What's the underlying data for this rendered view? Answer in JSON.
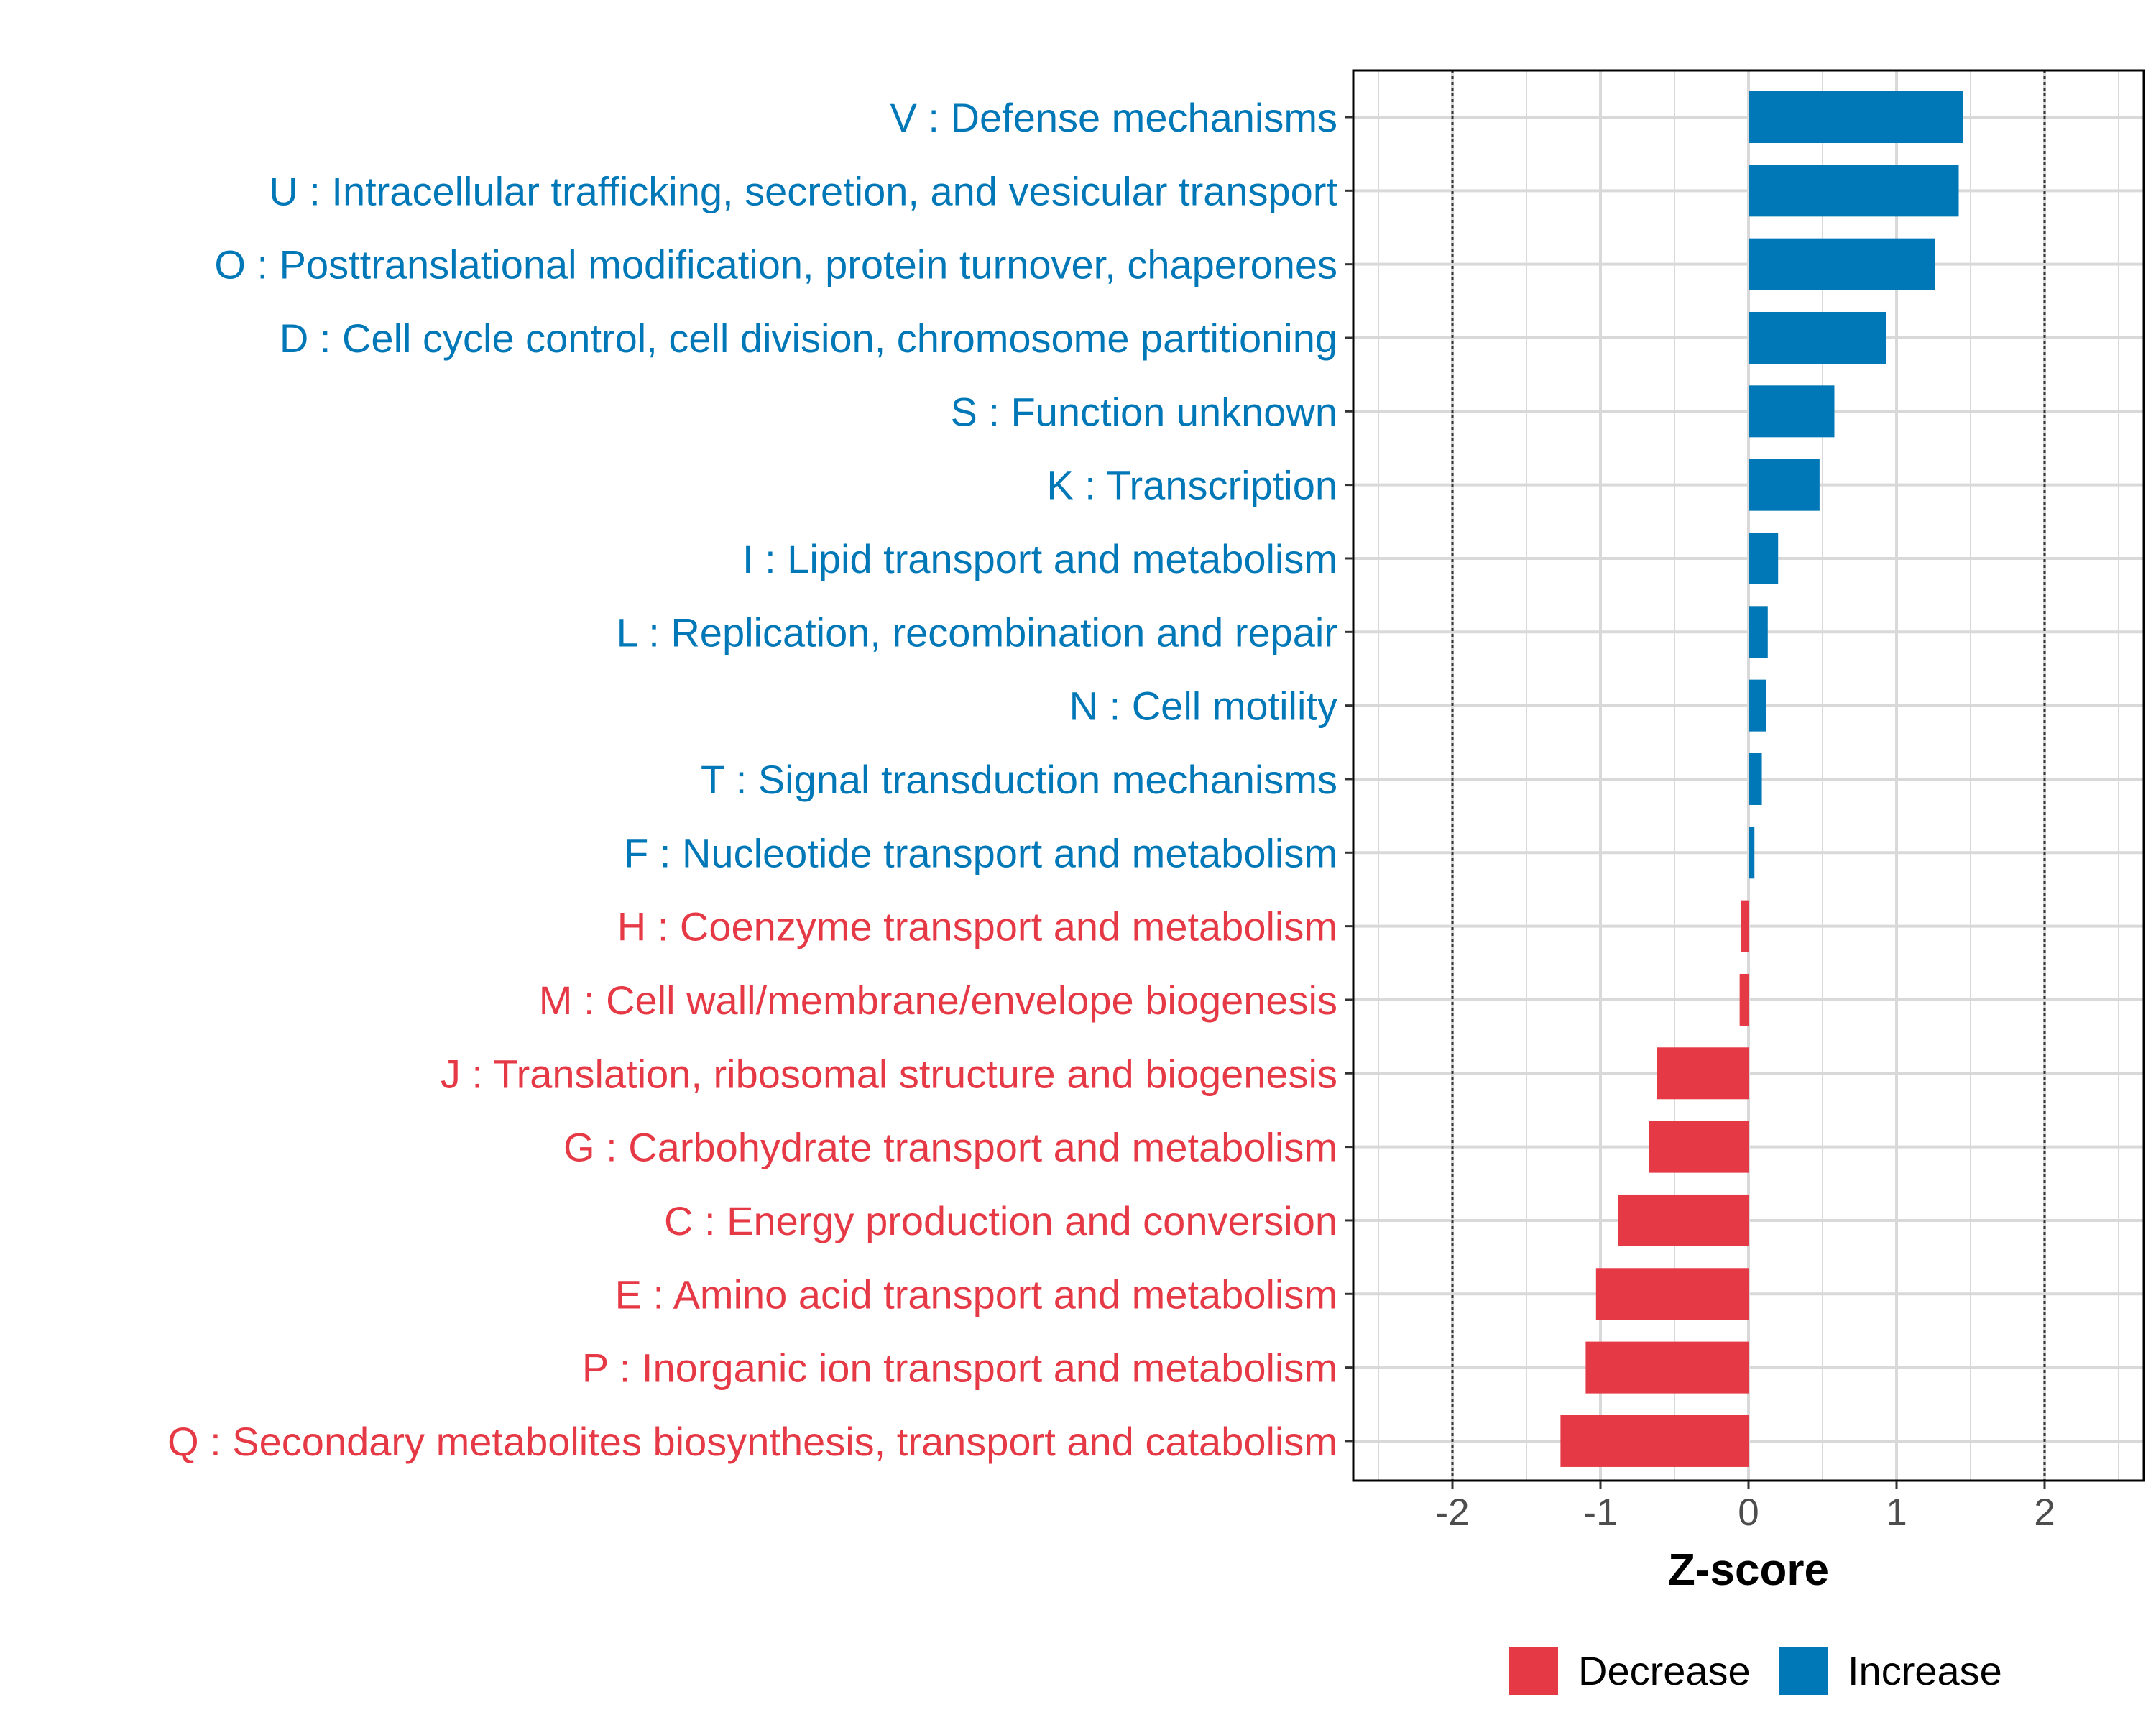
{
  "chart_data": {
    "type": "bar",
    "orientation": "horizontal",
    "title": "",
    "xlabel": "Z-score",
    "ylabel": "",
    "xlim": [
      -2.67,
      2.67
    ],
    "xticks": [
      -2,
      -1,
      0,
      1,
      2
    ],
    "xtick_labels": [
      "-2",
      "-1",
      "0",
      "1",
      "2"
    ],
    "reference_lines": [
      -2,
      2
    ],
    "grid": true,
    "colors": {
      "Decrease": "#E63946",
      "Increase": "#0077B6"
    },
    "categories": [
      "V : Defense mechanisms",
      "U : Intracellular trafficking, secretion, and vesicular transport",
      "O : Posttranslational modification, protein turnover, chaperones",
      "D : Cell cycle control, cell division, chromosome partitioning",
      "S : Function unknown",
      "K : Transcription",
      "I : Lipid transport and metabolism",
      "L : Replication, recombination and repair",
      "N : Cell motility",
      "T : Signal transduction mechanisms",
      "F : Nucleotide transport and metabolism",
      "H : Coenzyme transport and metabolism",
      "M : Cell wall/membrane/envelope biogenesis",
      "J : Translation, ribosomal structure and biogenesis",
      "G : Carbohydrate transport and metabolism",
      "C : Energy production and conversion",
      "E : Amino acid transport and metabolism",
      "P : Inorganic ion transport and metabolism",
      "Q : Secondary metabolites biosynthesis, transport and catabolism"
    ],
    "values": [
      1.45,
      1.42,
      1.26,
      0.93,
      0.58,
      0.48,
      0.2,
      0.13,
      0.12,
      0.09,
      0.04,
      -0.05,
      -0.06,
      -0.62,
      -0.67,
      -0.88,
      -1.03,
      -1.1,
      -1.27
    ],
    "groups": [
      "Increase",
      "Increase",
      "Increase",
      "Increase",
      "Increase",
      "Increase",
      "Increase",
      "Increase",
      "Increase",
      "Increase",
      "Increase",
      "Decrease",
      "Decrease",
      "Decrease",
      "Decrease",
      "Decrease",
      "Decrease",
      "Decrease",
      "Decrease"
    ],
    "legend": {
      "position": "bottom",
      "entries": [
        {
          "label": "Decrease",
          "color": "#E63946"
        },
        {
          "label": "Increase",
          "color": "#0077B6"
        }
      ]
    }
  }
}
